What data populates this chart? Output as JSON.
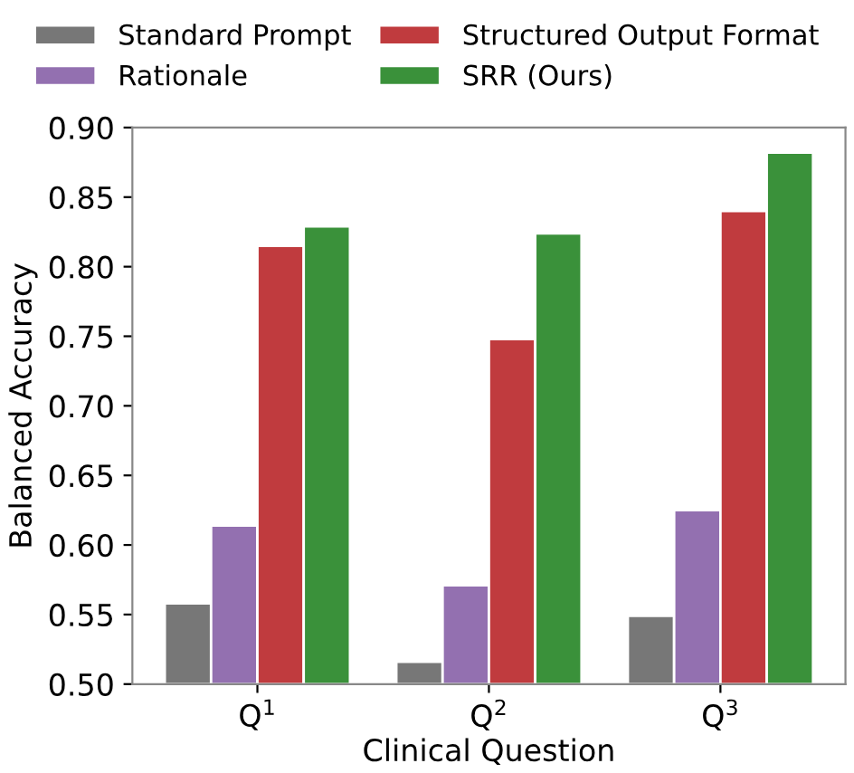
{
  "chart_data": {
    "type": "bar",
    "xlabel": "Clinical Question",
    "ylabel": "Balanced Accuracy",
    "categories": [
      "Q$^{1}$",
      "Q$^{2}$",
      "Q$^{3}$"
    ],
    "series": [
      {
        "name": "Standard Prompt",
        "color": "#777777",
        "values": [
          0.558,
          0.516,
          0.549
        ]
      },
      {
        "name": "Rationale",
        "color": "#9370b0",
        "values": [
          0.614,
          0.571,
          0.625
        ]
      },
      {
        "name": "Structured Output Format",
        "color": "#c03b3e",
        "values": [
          0.815,
          0.748,
          0.84
        ]
      },
      {
        "name": "SRR (Ours)",
        "color": "#3a913a",
        "values": [
          0.829,
          0.824,
          0.882
        ]
      }
    ],
    "ylim": [
      0.5,
      0.9
    ],
    "yticks": [
      {
        "value": 0.5,
        "label": "0.50"
      },
      0.55,
      {
        "value": 0.6,
        "label": "0.60"
      },
      0.65,
      {
        "value": 0.7,
        "label": "0.70"
      },
      0.75,
      {
        "value": 0.8,
        "label": "0.80"
      },
      0.85,
      {
        "value": 0.9,
        "label": "0.90"
      }
    ],
    "grid": false,
    "legend": "top"
  }
}
